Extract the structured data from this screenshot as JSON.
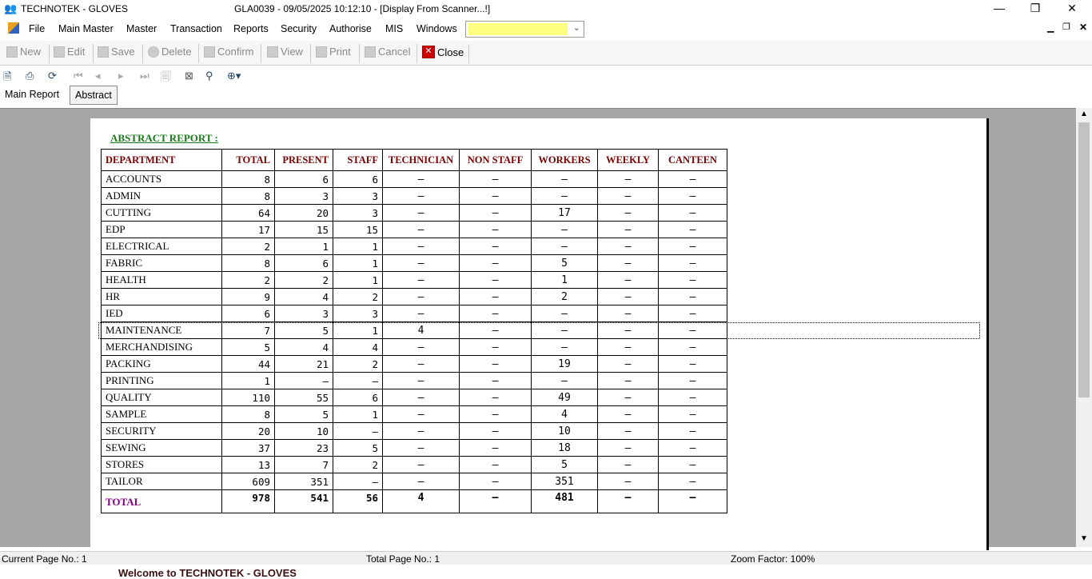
{
  "window": {
    "app_title": "TECHNOTEK - GLOVES",
    "center_title": "GLA0039 - 09/05/2025 10:12:10 - [Display From Scanner...!]"
  },
  "menu": [
    "File",
    "Main Master",
    "Master",
    "Transaction",
    "Reports",
    "Security",
    "Authorise",
    "MIS",
    "Windows"
  ],
  "combo": {
    "value": "",
    "color": "#ffff80"
  },
  "toolbar": {
    "new": "New",
    "edit": "Edit",
    "save": "Save",
    "delete": "Delete",
    "confirm": "Confirm",
    "view": "View",
    "print": "Print",
    "cancel": "Cancel",
    "close": "Close"
  },
  "tabs": [
    "Main Report",
    "Abstract"
  ],
  "report": {
    "title": "ABSTRACT REPORT  :",
    "columns": [
      "DEPARTMENT",
      "TOTAL",
      "PRESENT",
      "STAFF",
      "TECHNICIAN",
      "NON STAFF",
      "WORKERS",
      "WEEKLY",
      "CANTEEN"
    ],
    "rows": [
      [
        "ACCOUNTS",
        "8",
        "6",
        "6",
        "–",
        "–",
        "–",
        "–",
        "–"
      ],
      [
        "ADMIN",
        "8",
        "3",
        "3",
        "–",
        "–",
        "–",
        "–",
        "–"
      ],
      [
        "CUTTING",
        "64",
        "20",
        "3",
        "–",
        "–",
        "17",
        "–",
        "–"
      ],
      [
        "EDP",
        "17",
        "15",
        "15",
        "–",
        "–",
        "–",
        "–",
        "–"
      ],
      [
        "ELECTRICAL",
        "2",
        "1",
        "1",
        "–",
        "–",
        "–",
        "–",
        "–"
      ],
      [
        "FABRIC",
        "8",
        "6",
        "1",
        "–",
        "–",
        "5",
        "–",
        "–"
      ],
      [
        "HEALTH",
        "2",
        "2",
        "1",
        "–",
        "–",
        "1",
        "–",
        "–"
      ],
      [
        "HR",
        "9",
        "4",
        "2",
        "–",
        "–",
        "2",
        "–",
        "–"
      ],
      [
        "IED",
        "6",
        "3",
        "3",
        "–",
        "–",
        "–",
        "–",
        "–"
      ],
      [
        "MAINTENANCE",
        "7",
        "5",
        "1",
        "4",
        "–",
        "–",
        "–",
        "–"
      ],
      [
        "MERCHANDISING",
        "5",
        "4",
        "4",
        "–",
        "–",
        "–",
        "–",
        "–"
      ],
      [
        "PACKING",
        "44",
        "21",
        "2",
        "–",
        "–",
        "19",
        "–",
        "–"
      ],
      [
        "PRINTING",
        "1",
        "–",
        "–",
        "–",
        "–",
        "–",
        "–",
        "–"
      ],
      [
        "QUALITY",
        "110",
        "55",
        "6",
        "–",
        "–",
        "49",
        "–",
        "–"
      ],
      [
        "SAMPLE",
        "8",
        "5",
        "1",
        "–",
        "–",
        "4",
        "–",
        "–"
      ],
      [
        "SECURITY",
        "20",
        "10",
        "–",
        "–",
        "–",
        "10",
        "–",
        "–"
      ],
      [
        "SEWING",
        "37",
        "23",
        "5",
        "–",
        "–",
        "18",
        "–",
        "–"
      ],
      [
        "STORES",
        "13",
        "7",
        "2",
        "–",
        "–",
        "5",
        "–",
        "–"
      ],
      [
        "TAILOR",
        "609",
        "351",
        "–",
        "–",
        "–",
        "351",
        "–",
        "–"
      ]
    ],
    "total": [
      "TOTAL",
      "978",
      "541",
      "56",
      "4",
      "–",
      "481",
      "–",
      "–"
    ]
  },
  "status": {
    "current_page": "Current Page No.: 1",
    "total_page": "Total Page No.: 1",
    "zoom": "Zoom Factor: 100%"
  },
  "welcome": "Welcome to TECHNOTEK - GLOVES"
}
